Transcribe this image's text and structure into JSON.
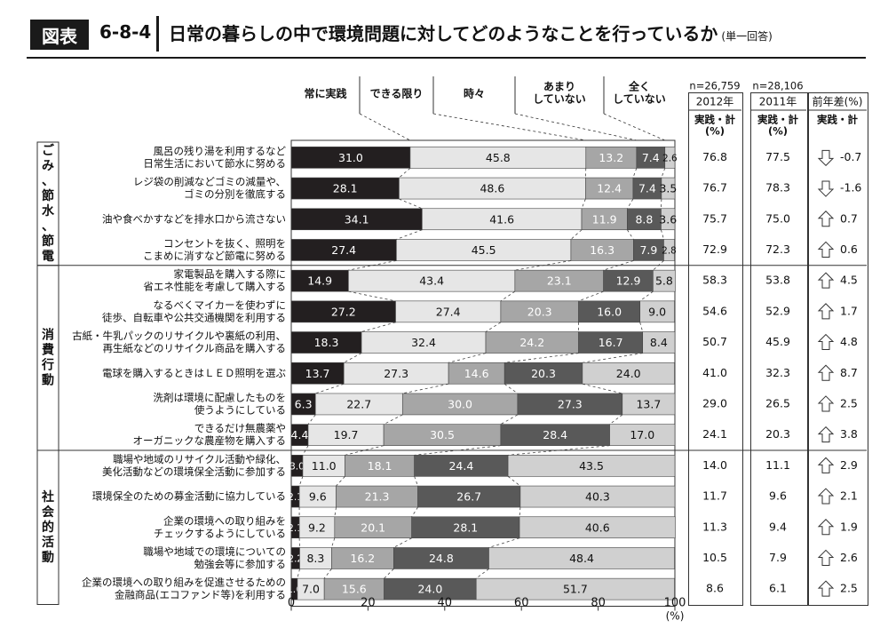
{
  "header": {
    "badge": "図表",
    "number": "6-8-4",
    "title": "日常の暮らしの中で環境問題に対してどのようなことを行っているか",
    "note": "(単一回答)"
  },
  "stats_header": {
    "n2012": "n=26,759",
    "n2011": "n=28,106",
    "col2012_year": "2012年",
    "col2011_year": "2011年",
    "col_diff": "前年差(%)",
    "col2012_sub": [
      "実践・計",
      "(%)"
    ],
    "col2011_sub": [
      "実践・計",
      "(%)"
    ],
    "col_diff_sub": "実践・計"
  },
  "groups": [
    {
      "label": "ごみ、節水、節電",
      "rows": [
        0,
        3
      ]
    },
    {
      "label": "消費行動",
      "rows": [
        4,
        9
      ]
    },
    {
      "label": "社会的活動",
      "rows": [
        10,
        14
      ]
    }
  ],
  "colors": {
    "c1": "#231f20",
    "c2": "#e6e6e6",
    "c3": "#a6a6a6",
    "c4": "#595959",
    "c5": "#d0d0d0",
    "frame": "#333333"
  },
  "chart_data": {
    "type": "bar",
    "orientation": "horizontal",
    "stacked": true,
    "xlim": [
      0,
      100
    ],
    "xticks": [
      "0",
      "20",
      "40",
      "60",
      "80",
      "100"
    ],
    "xunit": "(%)",
    "series": [
      {
        "name": "常に実践",
        "values": [
          31.0,
          28.1,
          34.1,
          27.4,
          14.9,
          27.2,
          18.3,
          13.7,
          6.3,
          4.4,
          3.0,
          2.1,
          2.1,
          2.2,
          1.6
        ]
      },
      {
        "name": "できる限り",
        "values": [
          45.8,
          48.6,
          41.6,
          45.5,
          43.4,
          27.4,
          32.4,
          27.3,
          22.7,
          19.7,
          11.0,
          9.6,
          9.2,
          8.3,
          7.0
        ]
      },
      {
        "name": "時々",
        "values": [
          13.2,
          12.4,
          11.9,
          16.3,
          23.1,
          20.3,
          24.2,
          14.6,
          30.0,
          30.5,
          18.1,
          21.3,
          20.1,
          16.2,
          15.6
        ]
      },
      {
        "name": "あまりしていない",
        "values": [
          7.4,
          7.4,
          8.8,
          7.9,
          12.9,
          16.0,
          16.7,
          20.3,
          27.3,
          28.4,
          24.4,
          26.7,
          28.1,
          24.8,
          24.0
        ]
      },
      {
        "name": "全くしていない",
        "values": [
          2.6,
          3.5,
          3.6,
          2.8,
          5.8,
          9.0,
          8.4,
          24.0,
          13.7,
          17.0,
          43.5,
          40.3,
          40.6,
          48.4,
          51.7
        ]
      }
    ],
    "legend_labels": [
      [
        "常に実践"
      ],
      [
        "できる限り"
      ],
      [
        "時々"
      ],
      [
        "あまり",
        "していない"
      ],
      [
        "全く",
        "していない"
      ]
    ],
    "categories": [
      [
        "風呂の残り湯を利用するなど",
        "日常生活において節水に努める"
      ],
      [
        "レジ袋の削減などゴミの減量や、",
        "ゴミの分別を徹底する"
      ],
      [
        "油や食べかすなどを排水口から流さない"
      ],
      [
        "コンセントを抜く、照明を",
        "こまめに消すなど節電に努める"
      ],
      [
        "家電製品を購入する際に",
        "省エネ性能を考慮して購入する"
      ],
      [
        "なるべくマイカーを使わずに",
        "徒歩、自転車や公共交通機関を利用する"
      ],
      [
        "古紙・牛乳パックのリサイクルや裏紙の利用、",
        "再生紙などのリサイクル商品を購入する"
      ],
      [
        "電球を購入するときはＬＥＤ照明を選ぶ"
      ],
      [
        "洗剤は環境に配慮したものを",
        "使うようにしている"
      ],
      [
        "できるだけ無農薬や",
        "オーガニックな農産物を購入する"
      ],
      [
        "職場や地域のリサイクル活動や緑化、",
        "美化活動などの環境保全活動に参加する"
      ],
      [
        "環境保全のための募金活動に協力している"
      ],
      [
        "企業の環境への取り組みを",
        "チェックするようにしている"
      ],
      [
        "職場や地域での環境についての",
        "勉強会等に参加する"
      ],
      [
        "企業の環境への取り組みを促進させるための",
        "金融商品(エコファンド等)を利用する"
      ]
    ],
    "practice_2012": [
      "76.8",
      "76.7",
      "75.7",
      "72.9",
      "58.3",
      "54.6",
      "50.7",
      "41.0",
      "29.0",
      "24.1",
      "14.0",
      "11.7",
      "11.3",
      "10.5",
      "8.6"
    ],
    "practice_2011": [
      "77.5",
      "78.3",
      "75.0",
      "72.3",
      "53.8",
      "52.9",
      "45.9",
      "32.3",
      "26.5",
      "20.3",
      "11.1",
      "9.6",
      "9.4",
      "7.9",
      "6.1"
    ],
    "diff": [
      "-0.7",
      "-1.6",
      "0.7",
      "0.6",
      "4.5",
      "1.7",
      "4.8",
      "8.7",
      "2.5",
      "3.8",
      "2.9",
      "2.1",
      "1.9",
      "2.6",
      "2.5"
    ],
    "diff_direction": [
      "down",
      "down",
      "up",
      "up",
      "up",
      "up",
      "up",
      "up",
      "up",
      "up",
      "up",
      "up",
      "up",
      "up",
      "up"
    ]
  }
}
